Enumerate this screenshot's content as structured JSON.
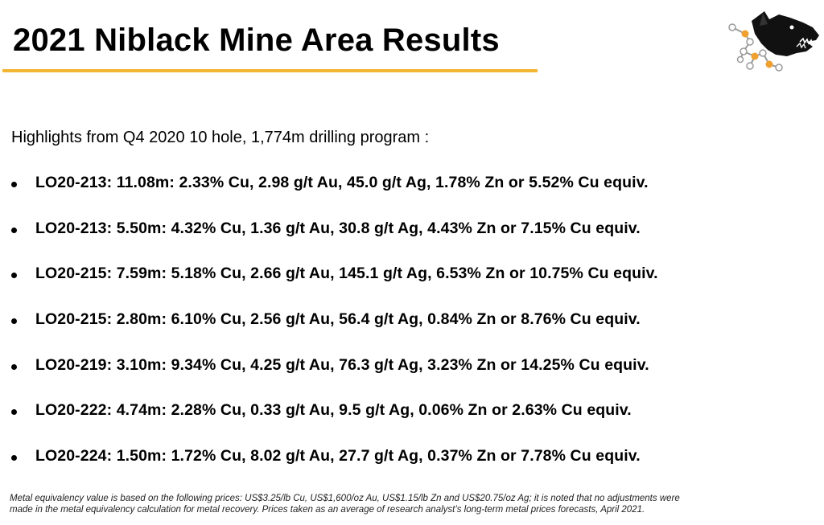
{
  "title": "2021 Niblack Mine Area Results",
  "intro": "Highlights from Q4 2020 10 hole, 1,774m drilling program :",
  "highlights": [
    "LO20-213: 11.08m: 2.33% Cu, 2.98 g/t Au, 45.0 g/t Ag, 1.78% Zn or 5.52% Cu equiv.",
    "LO20-213: 5.50m: 4.32% Cu, 1.36 g/t Au, 30.8 g/t Ag, 4.43% Zn or 7.15% Cu equiv.",
    "LO20-215: 7.59m: 5.18% Cu, 2.66 g/t Au, 145.1 g/t Ag, 6.53% Zn or 10.75% Cu equiv.",
    "LO20-215: 2.80m: 6.10% Cu, 2.56 g/t Au, 56.4 g/t Ag, 0.84% Zn or 8.76% Cu equiv.",
    "LO20-219: 3.10m: 9.34% Cu, 4.25 g/t Au, 76.3 g/t Ag, 3.23% Zn or 14.25% Cu equiv.",
    "LO20-222: 4.74m: 2.28% Cu, 0.33 g/t Au, 9.5 g/t Ag, 0.06% Zn or 2.63% Cu equiv.",
    "LO20-224: 1.50m: 1.72% Cu, 8.02 g/t Au, 27.7 g/t Ag, 0.37% Zn or 7.78% Cu equiv."
  ],
  "footnote": {
    "line1": "Metal equivalency value is based on the following prices: US$3.25/lb Cu, US$1,600/oz Au, US$1.15/lb Zn and US$20.75/oz Ag; it is noted that no adjustments were",
    "line2": "made in the metal equivalency calculation for metal recovery. Prices taken as an average of research analyst’s long-term metal prices forecasts, April 2021."
  },
  "colors": {
    "accent": "#F2B632",
    "text": "#000000",
    "logo_dark": "#111111",
    "logo_node": "#F0A030"
  },
  "icons": {
    "logo": "wolf-head-logo-icon"
  }
}
